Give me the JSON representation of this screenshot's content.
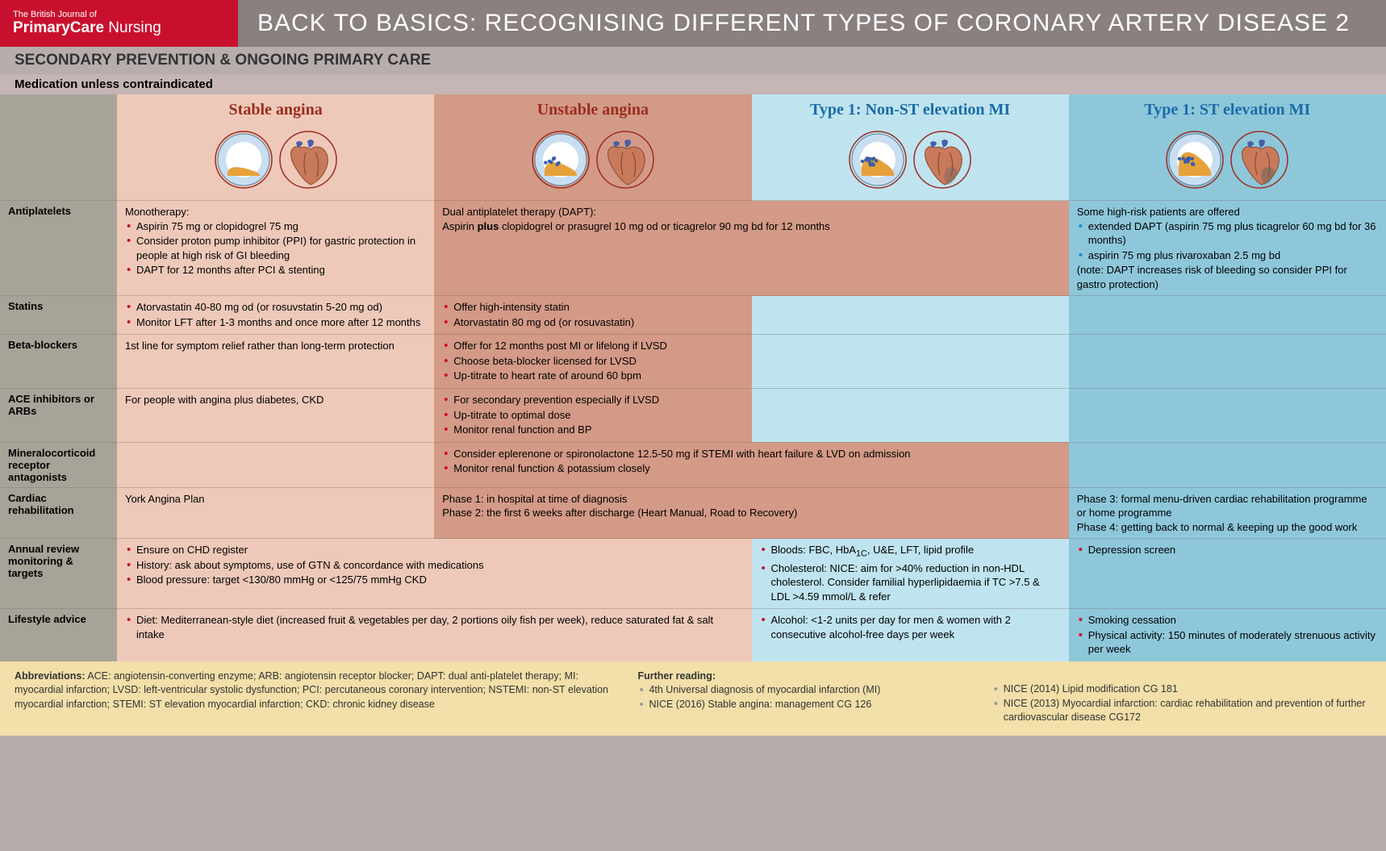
{
  "logo": {
    "line1": "The British Journal of",
    "line2light": "Primary",
    "line2bold1": "Care",
    "line2light2": " Nursing"
  },
  "title": "BACK TO BASICS: RECOGNISING DIFFERENT TYPES OF CORONARY ARTERY DISEASE 2",
  "sub1": "SECONDARY PREVENTION & ONGOING PRIMARY CARE",
  "sub2": "Medication unless contraindicated",
  "cols": {
    "c1": "Stable angina",
    "c2": "Unstable angina",
    "c3": "Type 1: Non-ST elevation MI",
    "c4": "Type 1: ST elevation MI"
  },
  "colors": {
    "logo_bg": "#c8102e",
    "title_bg": "#8a8080",
    "col0_bg": "#a8a399",
    "c1_bg": "#eec9b9",
    "c2_bg": "#d39a87",
    "c3_bg": "#bfe4ef",
    "c4_bg": "#8ec7da",
    "red_head": "#9b2d1f",
    "blue_head": "#1a6ba8",
    "footer_bg": "#f2dfa9"
  },
  "rows": {
    "antiplatelets": {
      "label": "Antiplatelets",
      "c1_title": "Monotherapy:",
      "c1": [
        "Aspirin 75 mg or clopidogrel 75 mg",
        "Consider proton pump inhibitor (PPI) for gastric protection in people at high risk of GI bleeding",
        "DAPT for 12 months after PCI & stenting"
      ],
      "c2_html": "Dual antiplatelet therapy (DAPT):<br>Aspirin <b>plus</b> clopidogrel or prasugrel 10 mg od or ticagrelor 90 mg bd for 12 months",
      "c4_title": "Some high-risk patients are offered",
      "c4": [
        "extended DAPT (aspirin 75 mg plus ticagrelor 60 mg bd for 36 months)",
        "aspirin 75 mg plus rivaroxaban 2.5 mg bd"
      ],
      "c4_note": "(note: DAPT increases risk of bleeding so consider PPI for gastro protection)"
    },
    "statins": {
      "label": "Statins",
      "c1": [
        "Atorvastatin 40-80 mg od (or rosuvstatin 5-20 mg od)",
        "Monitor LFT after 1-3 months and once more after 12 months"
      ],
      "c2": [
        "Offer high-intensity statin",
        "Atorvastatin 80 mg od (or rosuvastatin)"
      ]
    },
    "beta": {
      "label": "Beta-blockers",
      "c1_plain": "1st line for symptom relief rather than long-term protection",
      "c2": [
        "Offer for 12 months post MI or lifelong if LVSD",
        "Choose beta-blocker licensed for LVSD",
        "Up-titrate to heart rate of around 60 bpm"
      ]
    },
    "ace": {
      "label": "ACE inhibitors or ARBs",
      "c1_plain": "For people with angina plus diabetes, CKD",
      "c2": [
        "For secondary prevention especially if LVSD",
        "Up-titrate to optimal dose",
        "Monitor renal function and BP"
      ]
    },
    "mra": {
      "label": "Mineralocorticoid receptor antagonists",
      "c2": [
        "Consider eplerenone or spironolactone 12.5-50 mg if STEMI with heart failure & LVD on admission",
        "Monitor renal function & potassium closely"
      ]
    },
    "cardiac": {
      "label": "Cardiac rehabilitation",
      "c1_plain": "York Angina Plan",
      "c2_html": "Phase 1: in hospital at time of diagnosis<br>Phase 2: the first 6 weeks after discharge (Heart Manual, Road to Recovery)",
      "c4_html": "Phase 3: formal menu-driven cardiac rehabilitation programme or home programme<br>Phase 4: getting back to normal & keeping up the good work"
    },
    "annual": {
      "label": "Annual review monitoring & targets",
      "c1": [
        "Ensure on CHD register",
        "History: ask about symptoms, use of GTN & concordance with medications",
        "Blood pressure: target <130/80 mmHg or <125/75 mmHg CKD"
      ],
      "c2_html": "Bloods:  FBC, HbA<sub>1C</sub>, U&E, LFT, lipid profile",
      "c2b": "Cholesterol: NICE: aim for >40% reduction in non-HDL cholesterol. Consider familial hyperlipidaemia if TC >7.5 & LDL >4.59 mmol/L & refer",
      "c4": [
        "Depression screen"
      ]
    },
    "lifestyle": {
      "label": "Lifestyle advice",
      "c1": [
        "Diet: Mediterranean-style diet (increased fruit & vegetables per day, 2 portions oily fish per week), reduce saturated fat & salt intake"
      ],
      "c2": [
        "Alcohol: <1-2 units per day for men & women with 2 consecutive alcohol-free days per week"
      ],
      "c4": [
        "Smoking cessation",
        "Physical activity: 150 minutes of moderately strenuous activity per week"
      ]
    }
  },
  "footer": {
    "abbr_label": "Abbreviations:",
    "abbr": " ACE: angiotensin-converting enzyme; ARB: angiotensin receptor blocker; DAPT: dual anti-platelet therapy; MI: myocardial infarction; LVSD: left-ventricular systolic dysfunction; PCI: percutaneous coronary intervention; NSTEMI: non-ST elevation myocardial infarction; STEMI: ST elevation myocardial infarction; CKD: chronic kidney disease",
    "reading_label": "Further reading:",
    "r1": [
      "4th Universal diagnosis of myocardial infarction (MI)",
      "NICE (2016) Stable angina: management CG 126"
    ],
    "r2": [
      "NICE (2014) Lipid modification CG 181",
      "NICE (2013) Myocardial infarction: cardiac rehabilitation and prevention of further cardiovascular disease CG172"
    ]
  },
  "artery_occlusion": {
    "stable": 0.35,
    "unstable": 0.55,
    "nstemi": 0.75,
    "stemi": 0.95
  },
  "heart_damage": {
    "stable": 0,
    "unstable": 0,
    "nstemi": 0.25,
    "stemi": 0.45
  }
}
